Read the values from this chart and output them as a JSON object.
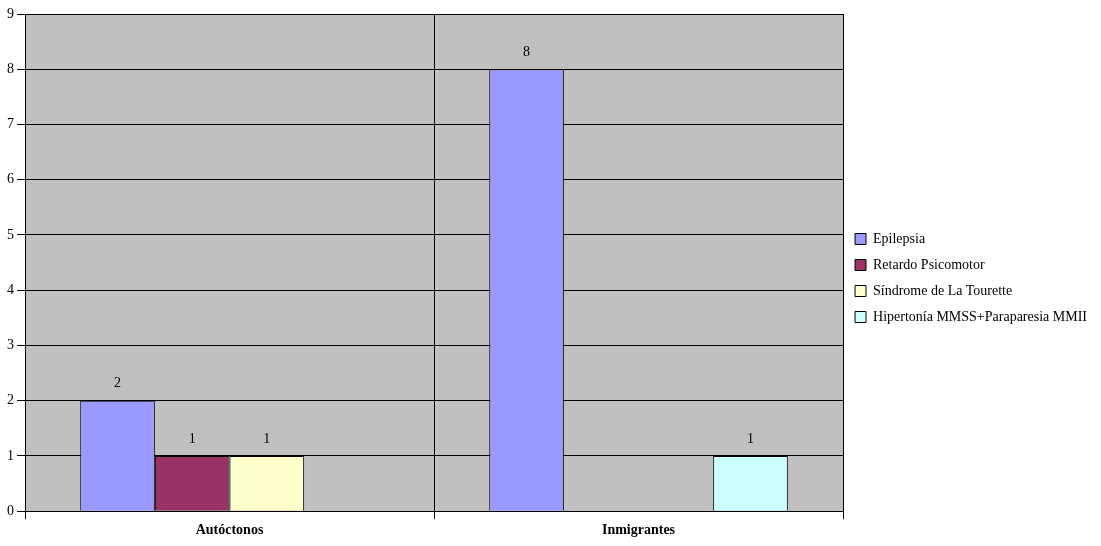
{
  "chart_data": {
    "type": "bar",
    "categories": [
      "Autóctonos",
      "Inmigrantes"
    ],
    "series": [
      {
        "name": "Epilepsia",
        "color": "#9999ff",
        "values": [
          2,
          8
        ]
      },
      {
        "name": "Retardo Psicomotor",
        "color": "#993366",
        "values": [
          1,
          null
        ]
      },
      {
        "name": "Síndrome de La Tourette",
        "color": "#ffffcc",
        "values": [
          1,
          null
        ]
      },
      {
        "name": "Hipertonía MMSS+Paraparesia MMII",
        "color": "#ccffff",
        "values": [
          null,
          1
        ]
      }
    ],
    "ylim": [
      0,
      9
    ],
    "yticks": [
      0,
      1,
      2,
      3,
      4,
      5,
      6,
      7,
      8,
      9
    ],
    "grid": true,
    "legend": "right",
    "data_labels": true
  }
}
